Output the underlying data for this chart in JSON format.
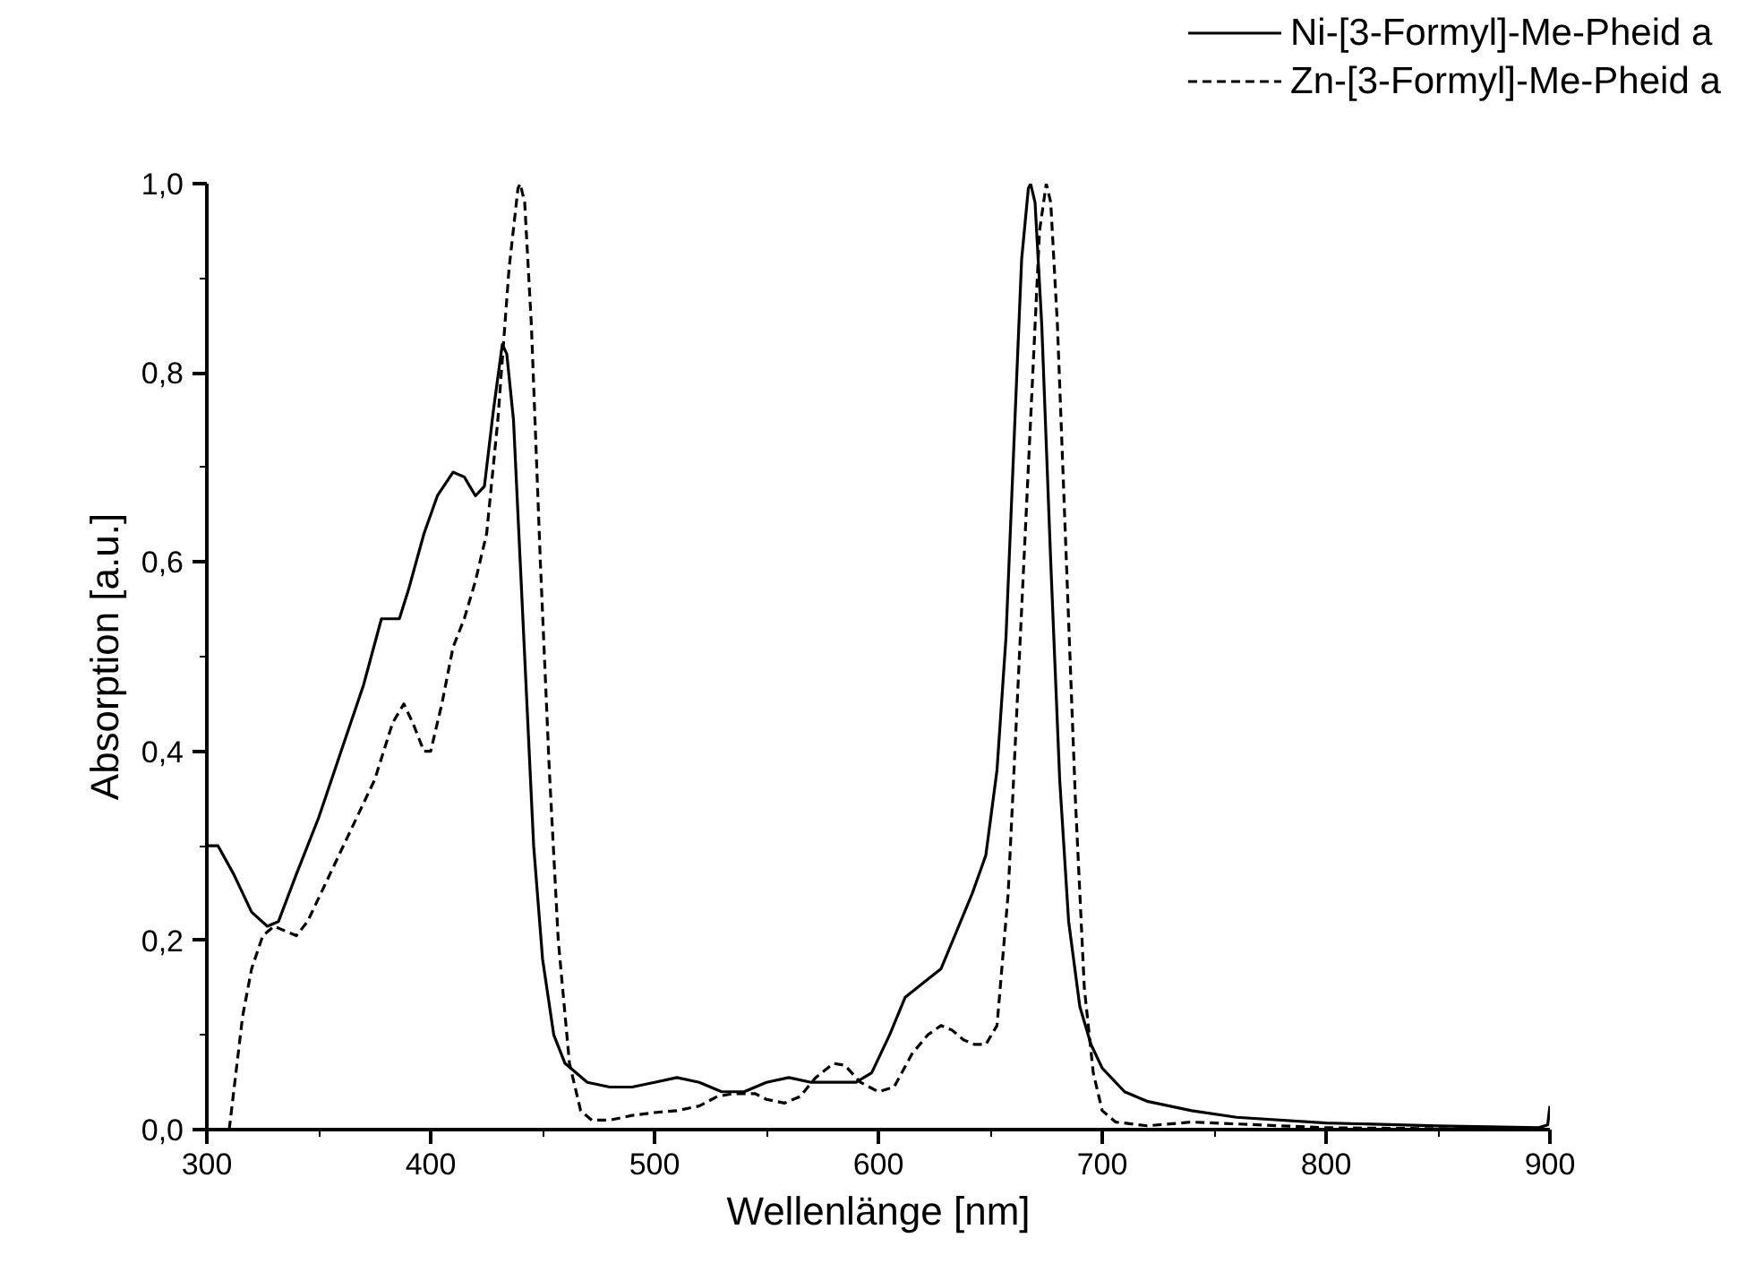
{
  "chart_data": {
    "type": "line",
    "xlabel": "Wellenlänge [nm]",
    "ylabel": "Absorption [a.u.]",
    "xlim": [
      300,
      900
    ],
    "ylim": [
      0,
      1.0
    ],
    "xticks": [
      300,
      {
        "value": 350,
        "label": null
      },
      400,
      {
        "value": 450,
        "label": null
      },
      500,
      {
        "value": 550,
        "label": null
      },
      600,
      {
        "value": 650,
        "label": null
      },
      700,
      {
        "value": 750,
        "label": null
      },
      800,
      {
        "value": 850,
        "label": null
      },
      900
    ],
    "yticks": [
      {
        "value": 0,
        "label": "0,0"
      },
      {
        "value": 0.1,
        "label": null
      },
      {
        "value": 0.2,
        "label": "0,2"
      },
      {
        "value": 0.3,
        "label": null
      },
      {
        "value": 0.4,
        "label": "0,4"
      },
      {
        "value": 0.5,
        "label": null
      },
      {
        "value": 0.6,
        "label": "0,6"
      },
      {
        "value": 0.7,
        "label": null
      },
      {
        "value": 0.8,
        "label": "0,8"
      },
      {
        "value": 0.9,
        "label": null
      },
      {
        "value": 1.0,
        "label": "1,0"
      }
    ],
    "grid": false,
    "legend": "top right",
    "marker": "none",
    "series": [
      {
        "name": "Ni-[3-Formyl]-Me-Pheid a",
        "color": "#000000",
        "line_style": "solid",
        "x": [
          300,
          305,
          312,
          320,
          327,
          332,
          340,
          350,
          360,
          370,
          378,
          382,
          386,
          390,
          397,
          403,
          410,
          415,
          420,
          424,
          428,
          432,
          434,
          437,
          440,
          443,
          446,
          450,
          455,
          460,
          470,
          480,
          490,
          500,
          510,
          520,
          530,
          540,
          550,
          560,
          570,
          580,
          590,
          597,
          605,
          612,
          620,
          628,
          635,
          642,
          648,
          653,
          657,
          661,
          664,
          667,
          668,
          670,
          673,
          677,
          681,
          685,
          690,
          695,
          700,
          710,
          720,
          740,
          760,
          800,
          850,
          895,
          899,
          900
        ],
        "values": [
          0.3,
          0.3,
          0.27,
          0.23,
          0.215,
          0.22,
          0.27,
          0.33,
          0.4,
          0.47,
          0.54,
          0.54,
          0.54,
          0.57,
          0.63,
          0.67,
          0.695,
          0.69,
          0.67,
          0.68,
          0.76,
          0.83,
          0.82,
          0.75,
          0.6,
          0.45,
          0.3,
          0.18,
          0.1,
          0.07,
          0.05,
          0.045,
          0.045,
          0.05,
          0.055,
          0.05,
          0.04,
          0.04,
          0.05,
          0.055,
          0.05,
          0.05,
          0.05,
          0.06,
          0.1,
          0.14,
          0.155,
          0.17,
          0.21,
          0.25,
          0.29,
          0.38,
          0.52,
          0.75,
          0.92,
          0.995,
          1.0,
          0.98,
          0.85,
          0.6,
          0.37,
          0.22,
          0.13,
          0.09,
          0.065,
          0.04,
          0.03,
          0.02,
          0.013,
          0.007,
          0.004,
          0.002,
          0.005,
          0.025
        ]
      },
      {
        "name": "Zn-[3-Formyl]-Me-Pheid a",
        "color": "#000000",
        "line_style": "dashed",
        "x": [
          310,
          313,
          316,
          320,
          325,
          330,
          335,
          340,
          345,
          355,
          365,
          375,
          383,
          388,
          392,
          397,
          400,
          405,
          410,
          415,
          420,
          425,
          430,
          435,
          439,
          440,
          442,
          445,
          449,
          453,
          457,
          462,
          467,
          472,
          480,
          490,
          500,
          510,
          520,
          528,
          535,
          545,
          550,
          558,
          565,
          572,
          580,
          585,
          592,
          600,
          607,
          615,
          622,
          628,
          633,
          638,
          643,
          648,
          653,
          658,
          663,
          668,
          672,
          675,
          677,
          680,
          684,
          688,
          692,
          696,
          700,
          706,
          720,
          740,
          760,
          780,
          800,
          850,
          900
        ],
        "values": [
          0.0,
          0.06,
          0.12,
          0.17,
          0.205,
          0.215,
          0.21,
          0.205,
          0.22,
          0.27,
          0.32,
          0.37,
          0.43,
          0.45,
          0.43,
          0.4,
          0.4,
          0.45,
          0.51,
          0.54,
          0.58,
          0.63,
          0.75,
          0.91,
          0.995,
          1.0,
          0.98,
          0.85,
          0.6,
          0.38,
          0.2,
          0.07,
          0.02,
          0.01,
          0.01,
          0.015,
          0.018,
          0.02,
          0.025,
          0.035,
          0.038,
          0.038,
          0.032,
          0.028,
          0.035,
          0.055,
          0.07,
          0.068,
          0.05,
          0.04,
          0.045,
          0.08,
          0.1,
          0.11,
          0.105,
          0.095,
          0.09,
          0.09,
          0.11,
          0.25,
          0.5,
          0.75,
          0.95,
          1.0,
          0.98,
          0.85,
          0.6,
          0.35,
          0.15,
          0.06,
          0.02,
          0.008,
          0.004,
          0.008,
          0.006,
          0.004,
          0.002,
          0.001,
          0.0
        ]
      }
    ]
  }
}
